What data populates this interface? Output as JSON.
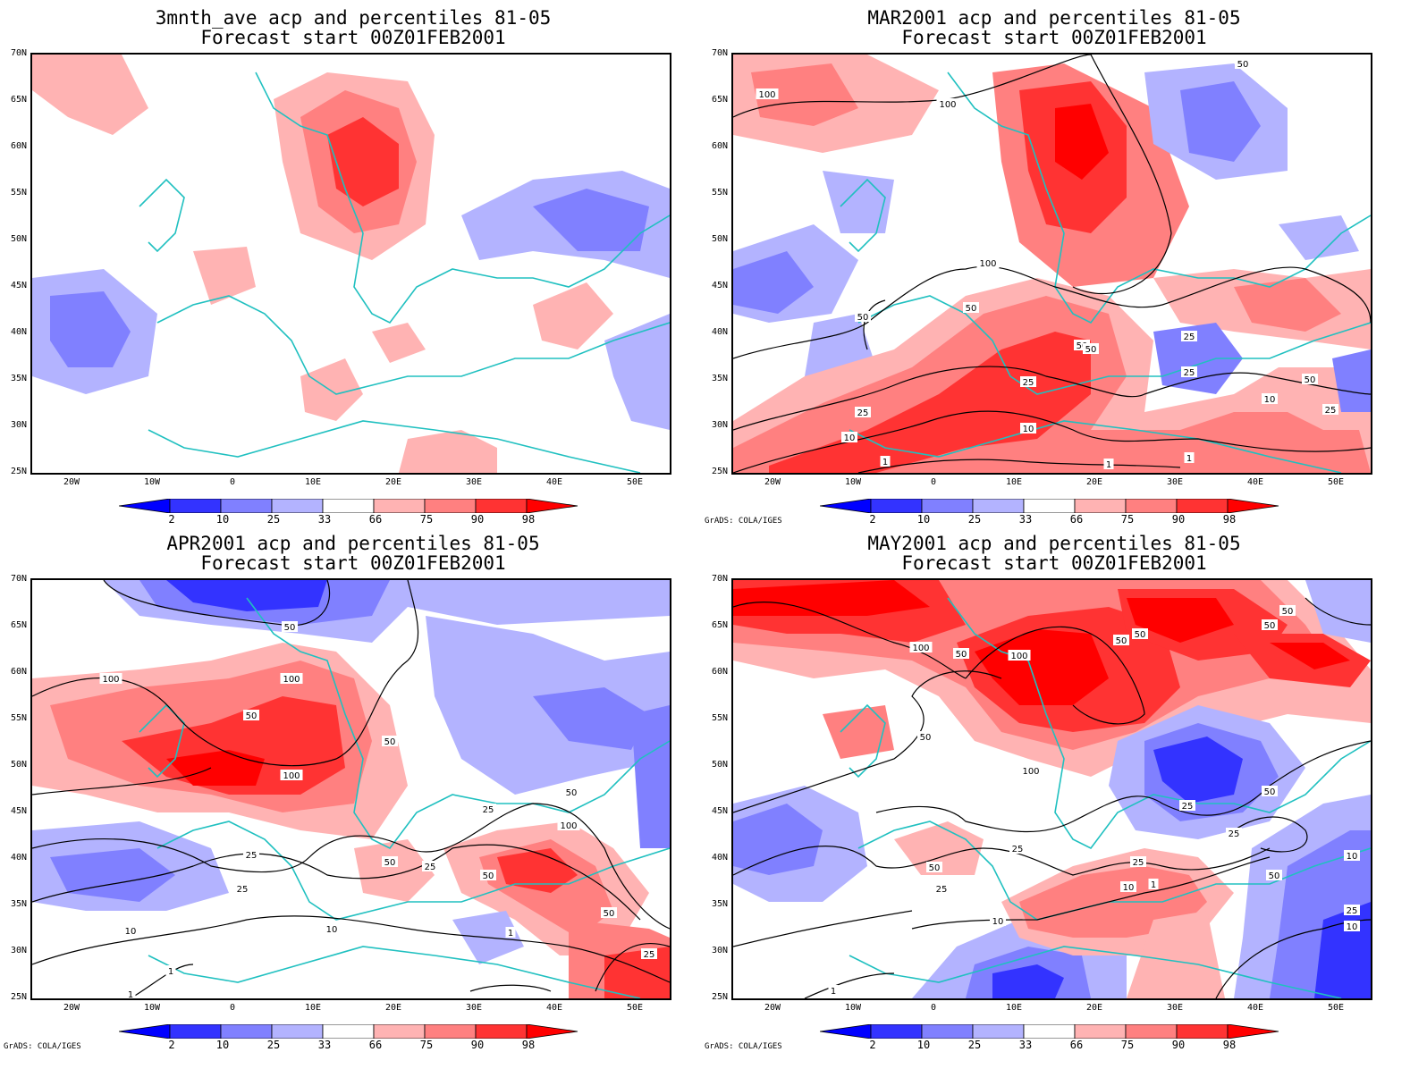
{
  "panels": [
    {
      "title1": "3mnth_ave acp and percentiles 81-05",
      "title2": "Forecast start 00Z01FEB2001",
      "contours": []
    },
    {
      "title1": "MAR2001 acp and percentiles 81-05",
      "title2": "Forecast start 00Z01FEB2001",
      "contours": [
        "100",
        "100",
        "50",
        "100",
        "50",
        "50",
        "50",
        "25",
        "25",
        "50",
        "10",
        "25",
        "10",
        "1",
        "1",
        "10",
        "1",
        "25",
        "50",
        "25"
      ]
    },
    {
      "title1": "APR2001 acp and percentiles 81-05",
      "title2": "Forecast start 00Z01FEB2001",
      "contours": [
        "50",
        "100",
        "100",
        "50",
        "50",
        "100",
        "50",
        "25",
        "25",
        "100",
        "50",
        "25",
        "50",
        "25",
        "50",
        "10",
        "10",
        "1",
        "1",
        "1",
        "25"
      ]
    },
    {
      "title1": "MAY2001 acp and percentiles 81-05",
      "title2": "Forecast start 00Z01FEB2001",
      "contours": [
        "50",
        "100",
        "50",
        "50",
        "50",
        "50",
        "50",
        "100",
        "50",
        "25",
        "100",
        "25",
        "25",
        "50",
        "25",
        "50",
        "10",
        "25",
        "10",
        "1",
        "10",
        "25",
        "10",
        "1"
      ]
    }
  ],
  "lat_labels": [
    "70N",
    "65N",
    "60N",
    "55N",
    "50N",
    "45N",
    "40N",
    "35N",
    "30N",
    "25N"
  ],
  "lon_labels": [
    "20W",
    "10W",
    "0",
    "10E",
    "20E",
    "30E",
    "40E",
    "50E"
  ],
  "colorbar": {
    "labels": [
      "2",
      "10",
      "25",
      "33",
      "66",
      "75",
      "90",
      "98"
    ],
    "colors": [
      "#0000ff",
      "#3333ff",
      "#8080ff",
      "#b3b3ff",
      "#ffffff",
      "#ffb3b3",
      "#ff8080",
      "#ff3333",
      "#ff0000"
    ]
  },
  "credit": "GrADS: COLA/IGES",
  "style": {
    "coast_color": "#20c0c0",
    "contour_color": "#000000"
  }
}
